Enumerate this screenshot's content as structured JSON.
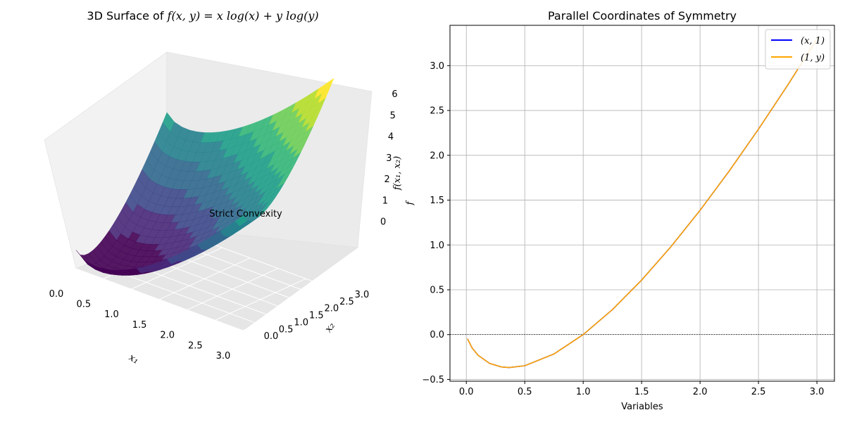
{
  "chart_data": [
    {
      "type": "surface",
      "title_prefix": "3D Surface of ",
      "title_math": "f(x, y) = x log(x) + y log(y)",
      "function": "x*log(x) + y*log(y)",
      "xlabel": "x₁",
      "ylabel": "x₂",
      "zlabel": "f(x₁, x₂)",
      "x_ticks": [
        "0.0",
        "0.5",
        "1.0",
        "1.5",
        "2.0",
        "2.5",
        "3.0"
      ],
      "y_ticks": [
        "0.0",
        "0.5",
        "1.0",
        "1.5",
        "2.0",
        "2.5",
        "3.0"
      ],
      "z_ticks": [
        "0",
        "1",
        "2",
        "3",
        "4",
        "5",
        "6"
      ],
      "xlim": [
        0.01,
        3
      ],
      "ylim": [
        0.01,
        3
      ],
      "zlim": [
        -0.74,
        6.6
      ],
      "colormap": "viridis",
      "annotation": "Strict Convexity",
      "annotation_color": "#ff0000"
    },
    {
      "type": "line",
      "title": "Parallel Coordinates of Symmetry",
      "xlabel": "Variables",
      "ylabel": "f",
      "xlim": [
        -0.14,
        3.15
      ],
      "ylim": [
        -0.52,
        3.45
      ],
      "x_ticks": [
        0.0,
        0.5,
        1.0,
        1.5,
        2.0,
        2.5,
        3.0
      ],
      "y_ticks": [
        -0.5,
        0.0,
        0.5,
        1.0,
        1.5,
        2.0,
        2.5,
        3.0
      ],
      "x_tick_labels": [
        "0.0",
        "0.5",
        "1.0",
        "1.5",
        "2.0",
        "2.5",
        "3.0"
      ],
      "y_tick_labels": [
        "−0.5",
        "0.0",
        "0.5",
        "1.0",
        "1.5",
        "2.0",
        "2.5",
        "3.0"
      ],
      "grid": true,
      "hline_y": 0,
      "legend_position": "top-right",
      "series": [
        {
          "name": "(x, 1)",
          "color": "#0000ff",
          "x": [
            0.01,
            0.05,
            0.1,
            0.2,
            0.3,
            0.368,
            0.5,
            0.75,
            1.0,
            1.25,
            1.5,
            1.75,
            2.0,
            2.25,
            2.5,
            2.75,
            3.0
          ],
          "y": [
            -0.046,
            -0.15,
            -0.23,
            -0.322,
            -0.361,
            -0.368,
            -0.347,
            -0.216,
            0.0,
            0.279,
            0.608,
            0.979,
            1.386,
            1.825,
            2.291,
            2.782,
            3.296
          ]
        },
        {
          "name": "(1, y)",
          "color": "#ffa500",
          "x": [
            0.01,
            0.05,
            0.1,
            0.2,
            0.3,
            0.368,
            0.5,
            0.75,
            1.0,
            1.25,
            1.5,
            1.75,
            2.0,
            2.25,
            2.5,
            2.75,
            3.0
          ],
          "y": [
            -0.046,
            -0.15,
            -0.23,
            -0.322,
            -0.361,
            -0.368,
            -0.347,
            -0.216,
            0.0,
            0.279,
            0.608,
            0.979,
            1.386,
            1.825,
            2.291,
            2.782,
            3.296
          ]
        }
      ]
    }
  ]
}
